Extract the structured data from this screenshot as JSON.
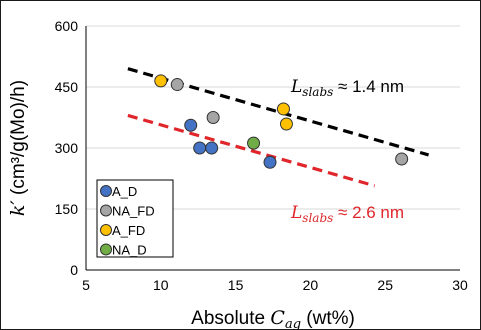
{
  "chart_data": {
    "type": "scatter",
    "xlabel": "Absolute 𝐶ag (wt%)",
    "xlabel_main": "Absolute ",
    "xlabel_var": "𝐶",
    "xlabel_sub": "ag",
    "xlabel_unit": " (wt%)",
    "ylabel": "k′ (cm³/g(Mo)/h)",
    "ylabel_var": "k′",
    "ylabel_unit": " (cm³/g(Mo)/h)",
    "xlim": [
      5,
      30
    ],
    "ylim": [
      0,
      600
    ],
    "xticks": [
      5,
      10,
      15,
      20,
      25,
      30
    ],
    "xtick_labels": [
      "5",
      "10",
      "15",
      "20",
      "25",
      "30"
    ],
    "yticks": [
      0,
      150,
      300,
      450,
      600
    ],
    "ytick_labels": [
      "0",
      "150",
      "300",
      "450",
      "600"
    ],
    "grid": "horizontal",
    "legend_position": "bottom-left",
    "series": [
      {
        "name": "A_D",
        "color": "#4472c4",
        "points": [
          [
            12.0,
            356
          ],
          [
            12.6,
            300
          ],
          [
            13.4,
            300
          ],
          [
            17.3,
            265
          ]
        ]
      },
      {
        "name": "NA_FD",
        "color": "#a5a5a5",
        "points": [
          [
            11.1,
            456
          ],
          [
            13.5,
            375
          ],
          [
            26.1,
            273
          ]
        ]
      },
      {
        "name": "A_FD",
        "color": "#ffc000",
        "points": [
          [
            10.0,
            465
          ],
          [
            18.2,
            396
          ],
          [
            18.4,
            359
          ]
        ]
      },
      {
        "name": "NA_D",
        "color": "#70ad47",
        "points": [
          [
            16.2,
            312
          ]
        ]
      }
    ],
    "trendlines": [
      {
        "color": "#000000",
        "x": [
          7.8,
          27.9
        ],
        "y": [
          495,
          283
        ],
        "label_prefix": "L",
        "label_sub": "slabs",
        "label_value": " ≈ 1.4 nm"
      },
      {
        "color": "#e0262a",
        "x": [
          7.8,
          24.3
        ],
        "y": [
          380,
          207
        ],
        "label_prefix": "L",
        "label_sub": "slabs",
        "label_value": " ≈ 2.6 nm"
      }
    ]
  }
}
